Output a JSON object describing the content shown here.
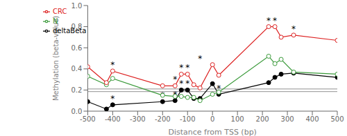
{
  "chart_data": {
    "type": "line",
    "xlabel": "Distance from TSS (bp)",
    "ylabel": "Methylation (beta-value)",
    "x": [
      -500,
      -425,
      -400,
      -200,
      -150,
      -125,
      -100,
      -75,
      -50,
      0,
      25,
      225,
      250,
      275,
      325,
      500
    ],
    "series": [
      {
        "name": "deltaBeta",
        "color": "#000000",
        "marker": "circle",
        "values": [
          0.09,
          0.02,
          0.06,
          0.09,
          0.1,
          0.2,
          0.2,
          0.12,
          0.12,
          0.26,
          0.16,
          0.27,
          0.32,
          0.35,
          0.36,
          0.32
        ]
      },
      {
        "name": "N",
        "color": "#3a9a3a",
        "marker": "open_circle",
        "values": [
          0.33,
          0.25,
          0.31,
          0.15,
          0.14,
          0.14,
          0.13,
          0.13,
          0.1,
          0.16,
          0.18,
          0.52,
          0.45,
          0.49,
          0.37,
          0.35
        ]
      },
      {
        "name": "CRC",
        "color": "#dd2222",
        "marker": "open_circle",
        "values": [
          0.42,
          0.27,
          0.38,
          0.24,
          0.24,
          0.35,
          0.35,
          0.25,
          0.22,
          0.44,
          0.34,
          0.8,
          0.8,
          0.7,
          0.72,
          0.67
        ]
      }
    ],
    "hlines": [
      {
        "y": 0.21,
        "color": "#909090"
      },
      {
        "y": 0.185,
        "color": "#909090"
      }
    ],
    "annotations": [
      {
        "x": -400,
        "y": 0.38,
        "text": "*"
      },
      {
        "x": -150,
        "y": 0.24,
        "text": "*"
      },
      {
        "x": -125,
        "y": 0.35,
        "text": "*"
      },
      {
        "x": -100,
        "y": 0.35,
        "text": "*"
      },
      {
        "x": -50,
        "y": 0.44,
        "text": "*"
      },
      {
        "x": 225,
        "y": 0.8,
        "text": "*"
      },
      {
        "x": 250,
        "y": 0.8,
        "text": "*"
      },
      {
        "x": 325,
        "y": 0.72,
        "text": "*"
      },
      {
        "x": -400,
        "y": 0.06,
        "text": "*"
      },
      {
        "x": -200,
        "y": 0.09,
        "text": "*"
      },
      {
        "x": -150,
        "y": 0.1,
        "text": "*"
      },
      {
        "x": -125,
        "y": 0.2,
        "text": "*"
      },
      {
        "x": -100,
        "y": 0.2,
        "text": "*"
      },
      {
        "x": 25,
        "y": 0.16,
        "text": "*"
      }
    ],
    "xlim": [
      -500,
      500
    ],
    "ylim": [
      0.0,
      1.0
    ],
    "xticks": [
      -500,
      -400,
      -300,
      -200,
      -100,
      0,
      100,
      200,
      300,
      400,
      500
    ],
    "yticks": [
      0.0,
      0.2,
      0.4,
      0.6,
      0.8,
      1.0
    ],
    "legend": "upper left",
    "grid": false
  }
}
